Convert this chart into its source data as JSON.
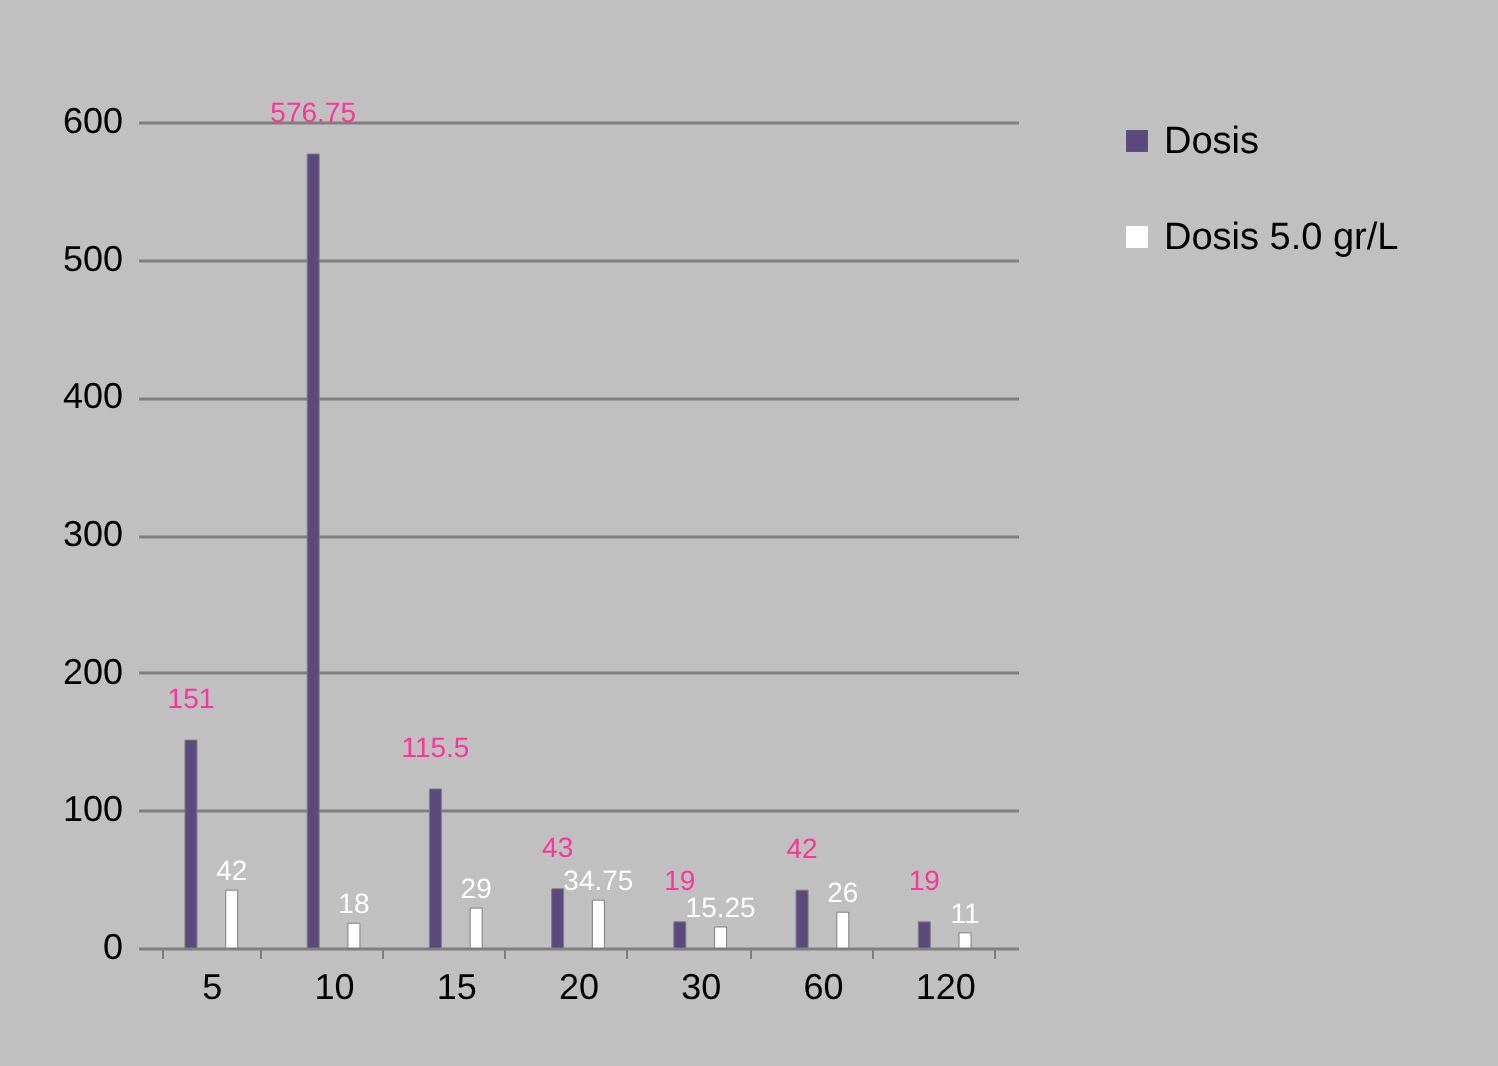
{
  "chart_data": {
    "type": "bar",
    "categories": [
      "5",
      "10",
      "15",
      "20",
      "30",
      "60",
      "120"
    ],
    "series": [
      {
        "name": "Dosis",
        "color": "#5b4a7e",
        "values": [
          151,
          576.75,
          115.5,
          43,
          19,
          42,
          19
        ]
      },
      {
        "name": "Dosis 5.0 gr/L",
        "color": "#ffffff",
        "values": [
          42,
          18,
          29,
          34.75,
          15.25,
          26,
          11
        ]
      }
    ],
    "ylim": [
      0,
      600
    ],
    "yticks": [
      0,
      100,
      200,
      300,
      400,
      500,
      600
    ],
    "grid": "y",
    "legend": "right",
    "data_labels": true
  }
}
